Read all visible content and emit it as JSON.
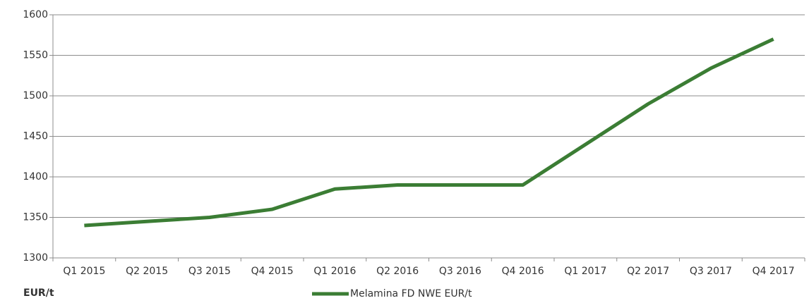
{
  "chart_data": {
    "type": "line",
    "categories": [
      "Q1 2015",
      "Q2 2015",
      "Q3 2015",
      "Q4 2015",
      "Q1 2016",
      "Q2 2016",
      "Q3 2016",
      "Q4 2016",
      "Q1 2017",
      "Q2 2017",
      "Q3 2017",
      "Q4 2017"
    ],
    "series": [
      {
        "name": "Melamina FD NWE EUR/t",
        "color": "#3b7d34",
        "values": [
          1340,
          1345,
          1350,
          1360,
          1385,
          1390,
          1390,
          1390,
          1440,
          1490,
          1534,
          1570
        ]
      }
    ],
    "y_label": "EUR/t",
    "ylim": [
      1300,
      1600
    ],
    "yticks": [
      1300,
      1350,
      1400,
      1450,
      1500,
      1550,
      1600
    ],
    "grid": true,
    "legend": "bottom"
  }
}
